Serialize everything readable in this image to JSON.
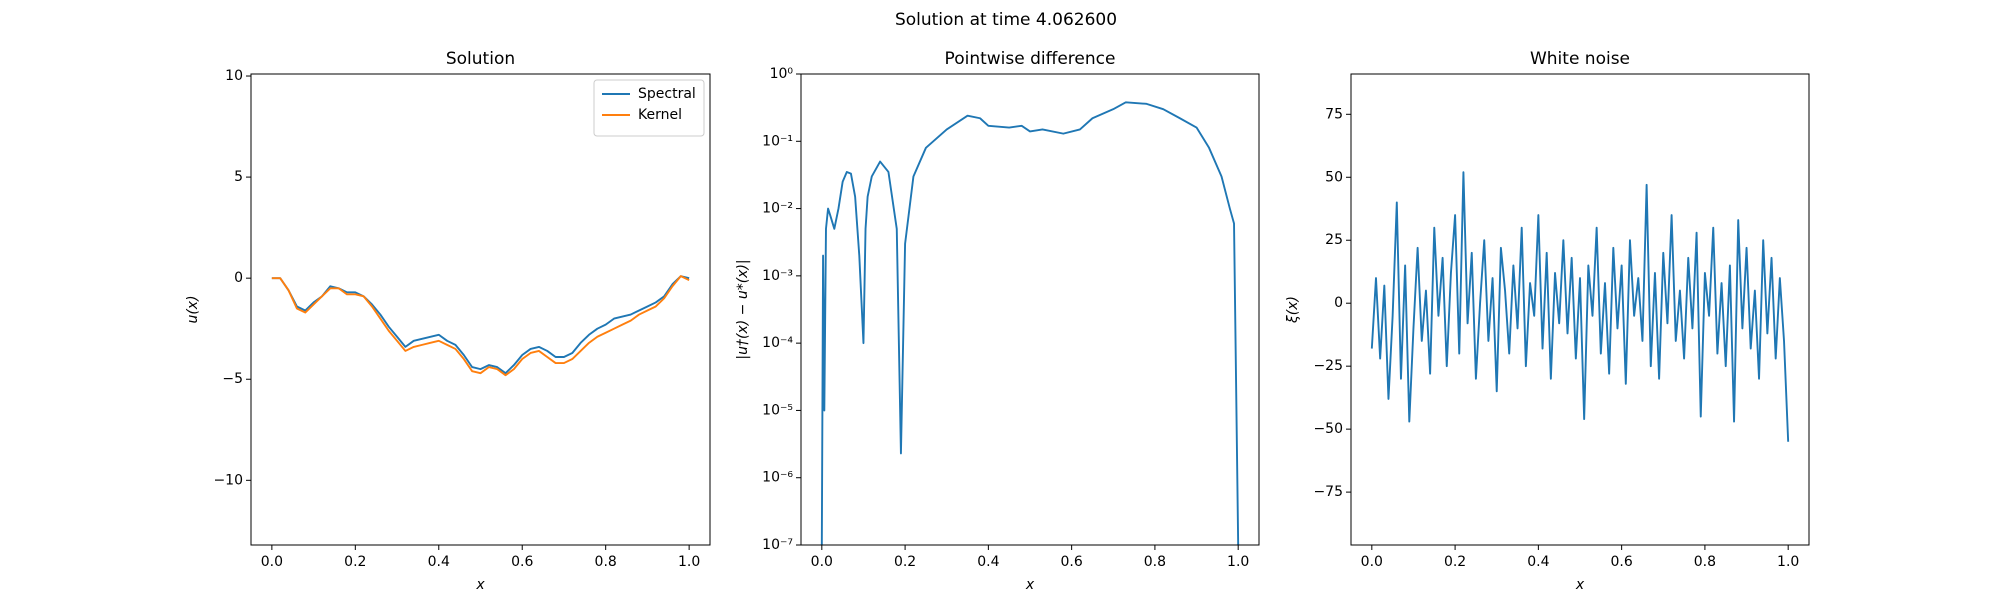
{
  "title": "Solution at time 4.062600",
  "chart_data": [
    {
      "type": "line",
      "title": "Solution",
      "xlabel": "x",
      "ylabel": "u(x)",
      "x": [
        0,
        0.02,
        0.04,
        0.06,
        0.08,
        0.1,
        0.12,
        0.14,
        0.16,
        0.18,
        0.2,
        0.22,
        0.24,
        0.26,
        0.28,
        0.3,
        0.32,
        0.34,
        0.36,
        0.38,
        0.4,
        0.42,
        0.44,
        0.46,
        0.48,
        0.5,
        0.52,
        0.54,
        0.56,
        0.58,
        0.6,
        0.62,
        0.64,
        0.66,
        0.68,
        0.7,
        0.72,
        0.74,
        0.76,
        0.78,
        0.8,
        0.82,
        0.84,
        0.86,
        0.88,
        0.9,
        0.92,
        0.94,
        0.96,
        0.98,
        1.0
      ],
      "series": [
        {
          "name": "Spectral",
          "color": "#1f77b4",
          "values": [
            0,
            0,
            -0.6,
            -1.4,
            -1.6,
            -1.2,
            -0.9,
            -0.4,
            -0.5,
            -0.7,
            -0.7,
            -0.9,
            -1.3,
            -1.8,
            -2.4,
            -2.9,
            -3.4,
            -3.1,
            -3.0,
            -2.9,
            -2.8,
            -3.1,
            -3.3,
            -3.8,
            -4.4,
            -4.5,
            -4.3,
            -4.4,
            -4.7,
            -4.3,
            -3.8,
            -3.5,
            -3.4,
            -3.6,
            -3.9,
            -3.9,
            -3.7,
            -3.2,
            -2.8,
            -2.5,
            -2.3,
            -2.0,
            -1.9,
            -1.8,
            -1.6,
            -1.4,
            -1.2,
            -0.9,
            -0.3,
            0.1,
            0
          ]
        },
        {
          "name": "Kernel",
          "color": "#ff7f0e",
          "values": [
            0,
            0,
            -0.6,
            -1.5,
            -1.7,
            -1.3,
            -0.9,
            -0.5,
            -0.5,
            -0.8,
            -0.8,
            -0.9,
            -1.4,
            -2.0,
            -2.6,
            -3.1,
            -3.6,
            -3.4,
            -3.3,
            -3.2,
            -3.1,
            -3.3,
            -3.5,
            -4.0,
            -4.6,
            -4.7,
            -4.4,
            -4.5,
            -4.8,
            -4.5,
            -4.0,
            -3.7,
            -3.6,
            -3.9,
            -4.2,
            -4.2,
            -4.0,
            -3.6,
            -3.2,
            -2.9,
            -2.7,
            -2.5,
            -2.3,
            -2.1,
            -1.8,
            -1.6,
            -1.4,
            -1.0,
            -0.4,
            0.1,
            -0.1
          ]
        }
      ],
      "xlim": [
        -0.05,
        1.05
      ],
      "ylim": [
        -13.2,
        10.1
      ],
      "xticks": [
        {
          "value": 0,
          "label": "0.0"
        },
        {
          "value": 0.2,
          "label": "0.2"
        },
        {
          "value": 0.4,
          "label": "0.4"
        },
        {
          "value": 0.6,
          "label": "0.6"
        },
        {
          "value": 0.8,
          "label": "0.8"
        },
        {
          "value": 1,
          "label": "1.0"
        }
      ],
      "yticks": [
        {
          "value": -10,
          "label": "−10"
        },
        {
          "value": -5,
          "label": "−5"
        },
        0,
        5,
        10
      ],
      "legend": "upper right"
    },
    {
      "type": "line",
      "title": "Pointwise difference",
      "xlabel": "x",
      "ylabel": "|u†(x) − u*(x)|",
      "yscale": "log",
      "color": "#1f77b4",
      "x": [
        0,
        0.003,
        0.006,
        0.01,
        0.015,
        0.02,
        0.03,
        0.04,
        0.05,
        0.06,
        0.07,
        0.08,
        0.09,
        0.1,
        0.105,
        0.11,
        0.12,
        0.14,
        0.16,
        0.18,
        0.19,
        0.2,
        0.22,
        0.25,
        0.3,
        0.35,
        0.38,
        0.4,
        0.45,
        0.48,
        0.5,
        0.53,
        0.58,
        0.62,
        0.65,
        0.7,
        0.73,
        0.78,
        0.82,
        0.86,
        0.9,
        0.93,
        0.96,
        0.98,
        0.99,
        1.0
      ],
      "values": [
        1e-07,
        0.002,
        1e-05,
        0.005,
        0.01,
        0.008,
        0.005,
        0.01,
        0.025,
        0.035,
        0.033,
        0.015,
        0.002,
        0.0001,
        0.005,
        0.015,
        0.03,
        0.05,
        0.035,
        0.005,
        2.3e-06,
        0.003,
        0.03,
        0.08,
        0.15,
        0.24,
        0.22,
        0.17,
        0.16,
        0.17,
        0.14,
        0.15,
        0.13,
        0.15,
        0.22,
        0.3,
        0.38,
        0.36,
        0.3,
        0.22,
        0.16,
        0.08,
        0.03,
        0.01,
        0.006,
        1e-07
      ],
      "xlim": [
        -0.05,
        1.05
      ],
      "ylim": [
        1e-07,
        1
      ],
      "xticks": [
        {
          "value": 0,
          "label": "0.0"
        },
        {
          "value": 0.2,
          "label": "0.2"
        },
        {
          "value": 0.4,
          "label": "0.4"
        },
        {
          "value": 0.6,
          "label": "0.6"
        },
        {
          "value": 0.8,
          "label": "0.8"
        },
        {
          "value": 1,
          "label": "1.0"
        }
      ],
      "yticks": [
        {
          "value": 1e-07,
          "label": "10⁻⁷"
        },
        {
          "value": 1e-06,
          "label": "10⁻⁶"
        },
        {
          "value": 1e-05,
          "label": "10⁻⁵"
        },
        {
          "value": 0.0001,
          "label": "10⁻⁴"
        },
        {
          "value": 0.001,
          "label": "10⁻³"
        },
        {
          "value": 0.01,
          "label": "10⁻²"
        },
        {
          "value": 0.1,
          "label": "10⁻¹"
        },
        {
          "value": 1,
          "label": "10⁰"
        }
      ]
    },
    {
      "type": "line",
      "title": "White noise",
      "xlabel": "x",
      "ylabel": "ξ(x)",
      "color": "#1f77b4",
      "x": [
        0,
        0.01,
        0.02,
        0.03,
        0.04,
        0.05,
        0.06,
        0.07,
        0.08,
        0.09,
        0.1,
        0.11,
        0.12,
        0.13,
        0.14,
        0.15,
        0.16,
        0.17,
        0.18,
        0.19,
        0.2,
        0.21,
        0.22,
        0.23,
        0.24,
        0.25,
        0.26,
        0.27,
        0.28,
        0.29,
        0.3,
        0.31,
        0.32,
        0.33,
        0.34,
        0.35,
        0.36,
        0.37,
        0.38,
        0.39,
        0.4,
        0.41,
        0.42,
        0.43,
        0.44,
        0.45,
        0.46,
        0.47,
        0.48,
        0.49,
        0.5,
        0.51,
        0.52,
        0.53,
        0.54,
        0.55,
        0.56,
        0.57,
        0.58,
        0.59,
        0.6,
        0.61,
        0.62,
        0.63,
        0.64,
        0.65,
        0.66,
        0.67,
        0.68,
        0.69,
        0.7,
        0.71,
        0.72,
        0.73,
        0.74,
        0.75,
        0.76,
        0.77,
        0.78,
        0.79,
        0.8,
        0.81,
        0.82,
        0.83,
        0.84,
        0.85,
        0.86,
        0.87,
        0.88,
        0.89,
        0.9,
        0.91,
        0.92,
        0.93,
        0.94,
        0.95,
        0.96,
        0.97,
        0.98,
        0.99,
        1.0
      ],
      "values": [
        -18,
        10,
        -22,
        7,
        -38,
        -5,
        40,
        -30,
        15,
        -47,
        -10,
        22,
        -15,
        5,
        -28,
        30,
        -5,
        18,
        -25,
        12,
        35,
        -20,
        52,
        -8,
        20,
        -30,
        0,
        25,
        -15,
        10,
        -35,
        22,
        5,
        -20,
        15,
        -10,
        30,
        -25,
        8,
        -5,
        35,
        -18,
        20,
        -30,
        12,
        -8,
        25,
        -12,
        18,
        -22,
        10,
        -46,
        15,
        -5,
        30,
        -20,
        8,
        -28,
        22,
        -10,
        15,
        -32,
        25,
        -5,
        10,
        -15,
        47,
        -25,
        12,
        -30,
        20,
        -8,
        35,
        -15,
        5,
        -22,
        18,
        -10,
        28,
        -45,
        12,
        -5,
        30,
        -20,
        8,
        -25,
        15,
        -47,
        33,
        -10,
        22,
        -18,
        5,
        -30,
        25,
        -12,
        18,
        -22,
        10,
        -15,
        -55
      ],
      "xlim": [
        -0.05,
        1.05
      ],
      "ylim": [
        -96,
        91
      ],
      "xticks": [
        {
          "value": 0,
          "label": "0.0"
        },
        {
          "value": 0.2,
          "label": "0.2"
        },
        {
          "value": 0.4,
          "label": "0.4"
        },
        {
          "value": 0.6,
          "label": "0.6"
        },
        {
          "value": 0.8,
          "label": "0.8"
        },
        {
          "value": 1,
          "label": "1.0"
        }
      ],
      "yticks": [
        {
          "value": -75,
          "label": "−75"
        },
        {
          "value": -50,
          "label": "−50"
        },
        {
          "value": -25,
          "label": "−25"
        },
        0,
        25,
        50,
        75
      ]
    }
  ]
}
